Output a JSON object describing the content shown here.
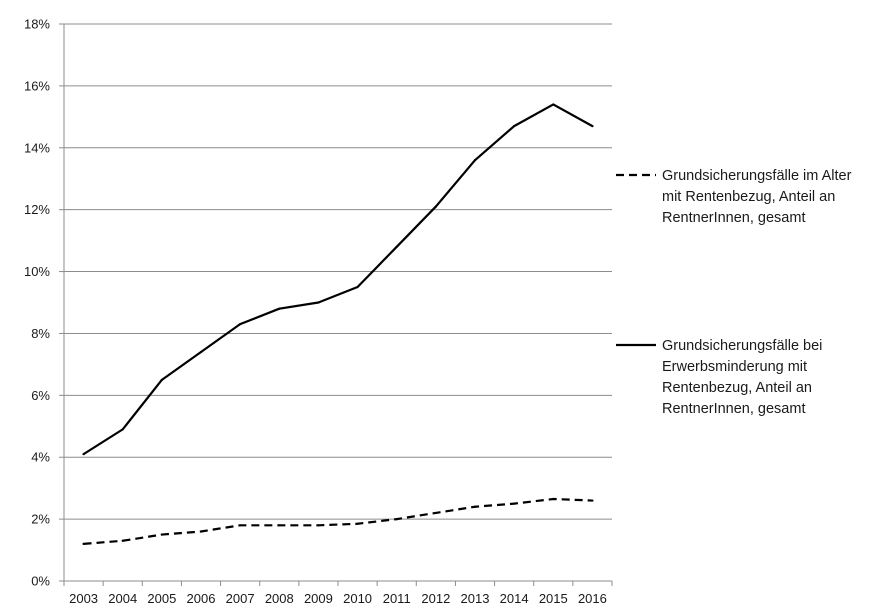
{
  "chart_data": {
    "type": "line",
    "categories": [
      "2003",
      "2004",
      "2005",
      "2006",
      "2007",
      "2008",
      "2009",
      "2010",
      "2011",
      "2012",
      "2013",
      "2014",
      "2015",
      "2016"
    ],
    "ylim": [
      0,
      18
    ],
    "yticks": [
      0,
      2,
      4,
      6,
      8,
      10,
      12,
      14,
      16,
      18
    ],
    "ytick_labels": [
      "0%",
      "2%",
      "4%",
      "6%",
      "8%",
      "10%",
      "12%",
      "14%",
      "16%",
      "18%"
    ],
    "grid": "horizontal",
    "legend_position": "right",
    "series": [
      {
        "key": "alter",
        "name_lines": [
          "Grundsicherungsfälle im Alter",
          "mit Rentenbezug, Anteil an",
          "RentnerInnen, gesamt"
        ],
        "style": "dashed",
        "color": "#000000",
        "values": [
          1.2,
          1.3,
          1.5,
          1.6,
          1.8,
          1.8,
          1.8,
          1.85,
          2.0,
          2.2,
          2.4,
          2.5,
          2.65,
          2.6
        ]
      },
      {
        "key": "erwerbsminderung",
        "name_lines": [
          "Grundsicherungsfälle bei",
          "Erwerbsminderung mit",
          "Rentenbezug, Anteil an",
          "RentnerInnen, gesamt"
        ],
        "style": "solid",
        "color": "#000000",
        "values": [
          4.1,
          4.9,
          6.5,
          7.4,
          8.3,
          8.8,
          9.0,
          9.5,
          10.8,
          12.1,
          13.6,
          14.7,
          15.4,
          14.7
        ]
      }
    ]
  }
}
